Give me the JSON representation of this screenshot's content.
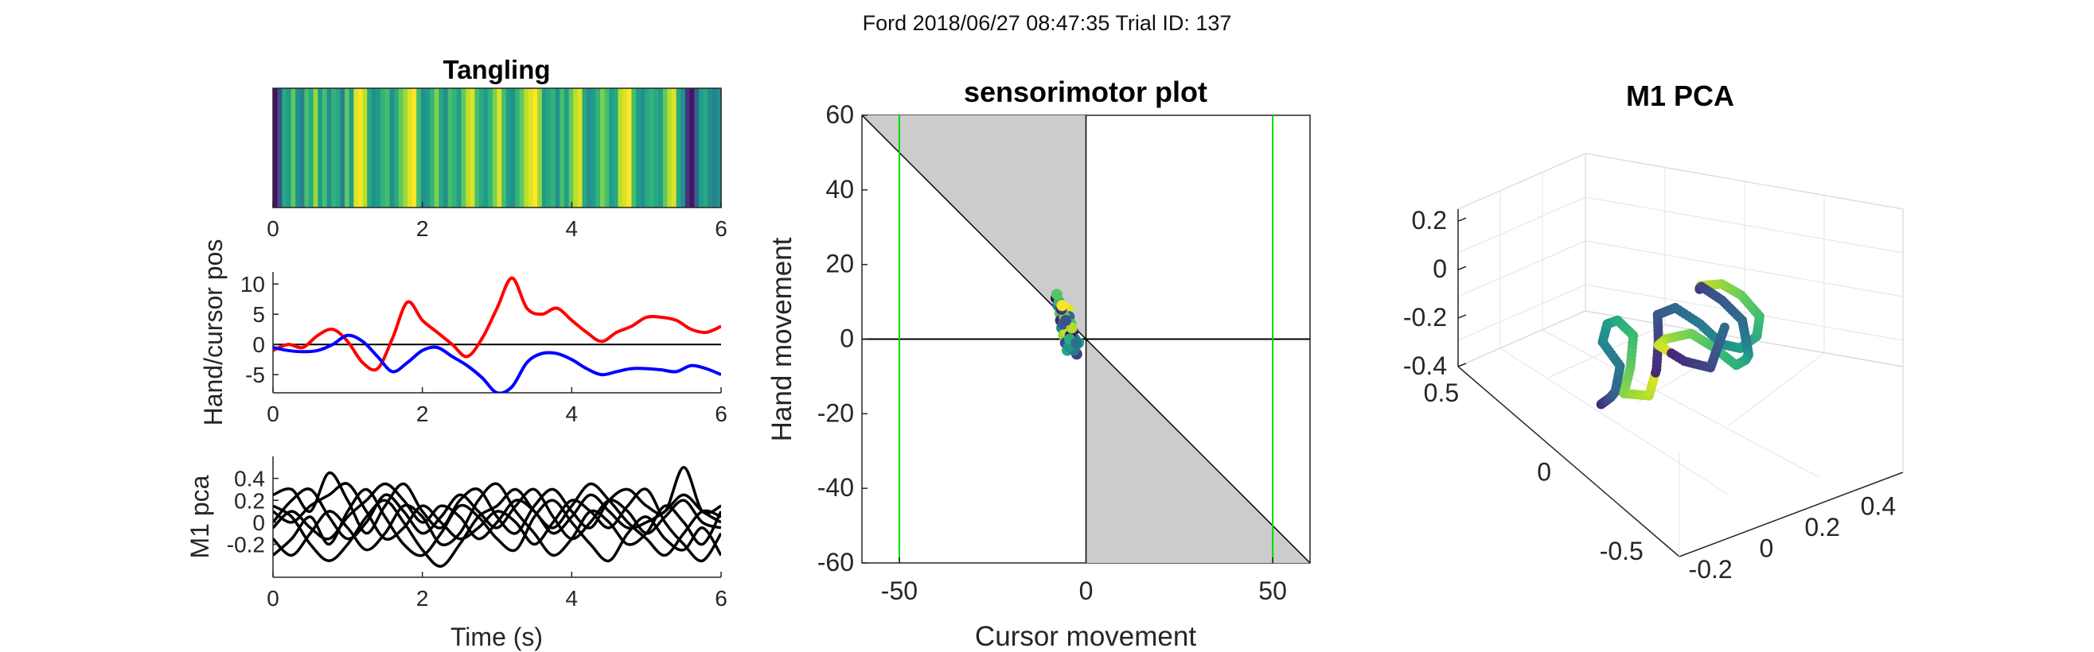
{
  "figure": {
    "title": "Ford 2018/06/27 08:47:35 Trial ID: 137"
  },
  "colors": {
    "hand": "#ff0000",
    "cursor": "#0000ff",
    "pca": "#000000",
    "shade": "#cccccc",
    "target_lines": "#00dd00",
    "colormap": "viridis"
  },
  "chart_data": [
    {
      "type": "heatmap",
      "title": "Tangling",
      "xlim": [
        0,
        6
      ],
      "xticks": [
        "0",
        "2",
        "4",
        "6"
      ],
      "colormap": "viridis",
      "values": [
        0.05,
        0.25,
        0.6,
        0.55,
        0.75,
        0.5,
        0.45,
        0.7,
        0.6,
        0.85,
        0.55,
        0.7,
        0.5,
        0.65,
        0.6,
        0.45,
        0.75,
        0.55,
        0.95,
        1.0,
        0.9,
        0.6,
        0.5,
        0.55,
        0.65,
        0.7,
        0.5,
        0.6,
        0.75,
        0.85,
        0.95,
        1.0,
        0.7,
        0.5,
        0.55,
        0.65,
        0.8,
        0.6,
        0.5,
        0.7,
        0.65,
        0.55,
        0.75,
        0.9,
        0.95,
        0.7,
        0.6,
        0.55,
        0.65,
        0.8,
        0.95,
        0.7,
        0.55,
        0.5,
        0.65,
        0.75,
        0.9,
        0.95,
        1.0,
        0.85,
        0.55,
        0.6,
        0.65,
        0.5,
        0.7,
        0.55,
        0.75,
        0.9,
        0.95,
        0.6,
        0.5,
        0.55,
        0.65,
        0.8,
        0.7,
        0.55,
        0.6,
        0.9,
        0.95,
        1.0,
        0.7,
        0.55,
        0.5,
        0.6,
        0.65,
        0.6,
        0.55,
        0.75,
        0.9,
        0.95,
        0.6,
        0.5,
        0.15,
        0.05,
        0.3,
        0.55,
        0.6,
        0.5,
        0.45,
        0.5
      ]
    },
    {
      "type": "line",
      "xlim": [
        0,
        6
      ],
      "ylim": [
        -8,
        12
      ],
      "xticks": [
        "0",
        "2",
        "4",
        "6"
      ],
      "yticks": [
        "-5",
        "0",
        "5",
        "10"
      ],
      "ylabel": "Hand/cursor pos",
      "x": [
        0,
        0.2,
        0.4,
        0.6,
        0.8,
        1.0,
        1.2,
        1.4,
        1.6,
        1.8,
        2.0,
        2.2,
        2.4,
        2.6,
        2.8,
        3.0,
        3.2,
        3.4,
        3.6,
        3.8,
        4.0,
        4.2,
        4.4,
        4.6,
        4.8,
        5.0,
        5.2,
        5.4,
        5.6,
        5.8,
        6.0
      ],
      "series": [
        {
          "color": "#ff0000",
          "values": [
            -1,
            0,
            -0.5,
            1.5,
            2.5,
            0.5,
            -3,
            -4,
            1,
            7,
            4,
            2,
            0,
            -2,
            1,
            6,
            11,
            6,
            5,
            6,
            4,
            2,
            0.5,
            2,
            3,
            4.5,
            4.5,
            4,
            2.5,
            2,
            3
          ]
        },
        {
          "color": "#0000ff",
          "values": [
            -0.5,
            -1,
            -1.2,
            -1,
            0,
            1.5,
            0.5,
            -2,
            -4.5,
            -3,
            -1,
            -0.5,
            -2,
            -3.5,
            -5.5,
            -8,
            -7,
            -3,
            -1.5,
            -1.5,
            -2.5,
            -4,
            -5,
            -4.5,
            -4,
            -4,
            -4.2,
            -4.5,
            -3.5,
            -4,
            -5
          ]
        }
      ]
    },
    {
      "type": "line",
      "xlim": [
        0,
        6
      ],
      "ylim": [
        -0.5,
        0.6
      ],
      "xticks": [
        "0",
        "2",
        "4",
        "6"
      ],
      "yticks": [
        "-0.2",
        "0",
        "0.2",
        "0.4"
      ],
      "xlabel": "Time (s)",
      "ylabel": "M1 pca",
      "x": [
        0,
        0.25,
        0.5,
        0.75,
        1.0,
        1.25,
        1.5,
        1.75,
        2.0,
        2.25,
        2.5,
        2.75,
        3.0,
        3.25,
        3.5,
        3.75,
        4.0,
        4.25,
        4.5,
        4.75,
        5.0,
        5.25,
        5.5,
        5.75,
        6.0
      ],
      "series": [
        {
          "color": "#000000",
          "values": [
            0.25,
            0.3,
            0.1,
            0.45,
            0.2,
            -0.1,
            0.15,
            0.35,
            0.1,
            -0.05,
            0.2,
            0.3,
            0.05,
            -0.1,
            0.15,
            0.3,
            0.1,
            -0.05,
            0.2,
            0.3,
            0.15,
            0.1,
            0.5,
            0.1,
            0.15
          ]
        },
        {
          "color": "#000000",
          "values": [
            -0.3,
            -0.15,
            0.05,
            -0.2,
            0.1,
            0.3,
            0.05,
            -0.2,
            -0.3,
            -0.1,
            0.15,
            0.05,
            -0.15,
            -0.25,
            0.05,
            0.2,
            0.0,
            -0.2,
            -0.35,
            -0.1,
            0.05,
            -0.15,
            -0.25,
            -0.05,
            -0.3
          ]
        },
        {
          "color": "#000000",
          "values": [
            0.0,
            0.2,
            0.3,
            0.05,
            -0.15,
            0.0,
            0.25,
            0.1,
            -0.1,
            0.05,
            0.25,
            0.1,
            -0.05,
            0.15,
            0.3,
            0.05,
            -0.15,
            0.0,
            0.2,
            0.1,
            -0.1,
            0.05,
            0.2,
            0.0,
            -0.05
          ]
        },
        {
          "color": "#000000",
          "values": [
            -0.15,
            -0.3,
            -0.1,
            0.1,
            -0.05,
            -0.25,
            -0.1,
            0.15,
            0.05,
            -0.2,
            -0.1,
            0.2,
            0.35,
            0.1,
            -0.1,
            -0.3,
            -0.15,
            0.1,
            0.0,
            -0.2,
            -0.1,
            0.15,
            0.0,
            -0.2,
            0.1
          ]
        },
        {
          "color": "#000000",
          "values": [
            0.15,
            0.05,
            -0.2,
            -0.35,
            -0.2,
            0.05,
            0.2,
            0.0,
            -0.25,
            -0.4,
            -0.2,
            0.05,
            0.15,
            0.3,
            0.1,
            -0.05,
            0.15,
            0.35,
            0.2,
            0.0,
            -0.15,
            -0.3,
            -0.1,
            0.1,
            0.05
          ]
        },
        {
          "color": "#000000",
          "values": [
            0.1,
            0.0,
            0.15,
            0.25,
            0.35,
            0.1,
            -0.15,
            -0.05,
            0.15,
            0.0,
            -0.15,
            -0.05,
            0.1,
            0.0,
            -0.2,
            0.0,
            0.2,
            0.1,
            -0.05,
            0.15,
            0.3,
            0.0,
            -0.2,
            -0.35,
            -0.1
          ]
        },
        {
          "color": "#000000",
          "values": [
            -0.05,
            0.1,
            -0.05,
            -0.15,
            0.05,
            0.2,
            0.35,
            0.2,
            0.0,
            0.15,
            0.05,
            -0.15,
            0.0,
            0.2,
            0.1,
            -0.1,
            0.05,
            0.25,
            0.1,
            -0.05,
            0.0,
            0.1,
            0.25,
            0.1,
            0.0
          ]
        }
      ]
    },
    {
      "type": "scatter",
      "title": "sensorimotor plot",
      "xlabel": "Cursor movement",
      "ylabel": "Hand movement",
      "xlim": [
        -60,
        60
      ],
      "ylim": [
        -60,
        60
      ],
      "xticks": [
        "-50",
        "0",
        "50"
      ],
      "yticks": [
        "-60",
        "-40",
        "-20",
        "0",
        "20",
        "40",
        "60"
      ],
      "target_lines_x": [
        -50,
        50
      ],
      "shaded_regions": "between y = -x and the y-axis",
      "points_x": [
        -8,
        -7.5,
        -7,
        -6.8,
        -6.5,
        -6,
        -5.5,
        -5,
        -4.8,
        -4.5,
        -4,
        -3.5,
        -3,
        -2.8,
        -2.5,
        -2,
        -5.2,
        -6.2,
        -7.2,
        -4.2,
        -3.2,
        -5.8,
        -6.6,
        -4.6,
        -3.8,
        -5.4,
        -4.4,
        -6.4,
        -2.6,
        -7.8
      ],
      "points_y": [
        11,
        9,
        7,
        5,
        3,
        1,
        -1,
        -3,
        8,
        6,
        4,
        2,
        0,
        -2,
        -4,
        -1,
        2,
        4,
        10,
        1,
        -3,
        6,
        8,
        -2,
        3,
        5,
        0,
        9,
        -1,
        12
      ],
      "colormap": "viridis"
    },
    {
      "type": "scatter",
      "title": "M1 PCA",
      "projection": "3d",
      "xticks": [
        "-0.2",
        "0",
        "0.2",
        "0.4"
      ],
      "yticks": [
        "-0.5",
        "0",
        "0.5"
      ],
      "zticks": [
        "-0.4",
        "-0.2",
        "0",
        "0.2"
      ],
      "xlim": [
        -0.3,
        0.5
      ],
      "ylim": [
        -0.6,
        0.6
      ],
      "zlim": [
        -0.4,
        0.25
      ],
      "colormap": "viridis",
      "points": [
        [
          -0.25,
          -0.1,
          -0.12
        ],
        [
          -0.2,
          -0.05,
          -0.16
        ],
        [
          -0.15,
          0.0,
          -0.2
        ],
        [
          -0.1,
          0.05,
          -0.23
        ],
        [
          -0.05,
          0.1,
          -0.18
        ],
        [
          -0.08,
          0.15,
          -0.1
        ],
        [
          -0.03,
          0.2,
          -0.08
        ],
        [
          0.02,
          0.22,
          -0.1
        ],
        [
          0.05,
          0.18,
          -0.15
        ],
        [
          0.0,
          0.12,
          -0.22
        ],
        [
          -0.05,
          0.08,
          -0.28
        ],
        [
          0.02,
          0.05,
          -0.3
        ],
        [
          0.08,
          0.1,
          -0.25
        ],
        [
          0.12,
          0.15,
          -0.18
        ],
        [
          0.15,
          0.2,
          -0.12
        ],
        [
          0.2,
          0.18,
          -0.1
        ],
        [
          0.25,
          0.12,
          -0.15
        ],
        [
          0.28,
          0.05,
          -0.2
        ],
        [
          0.3,
          -0.02,
          -0.18
        ],
        [
          0.32,
          -0.08,
          -0.1
        ],
        [
          0.35,
          -0.05,
          -0.05
        ],
        [
          0.33,
          0.02,
          0.0
        ],
        [
          0.3,
          0.08,
          0.02
        ],
        [
          0.27,
          0.15,
          -0.02
        ],
        [
          0.3,
          0.2,
          -0.08
        ],
        [
          0.34,
          0.25,
          -0.12
        ],
        [
          0.38,
          0.2,
          -0.16
        ],
        [
          0.4,
          0.12,
          -0.2
        ],
        [
          0.37,
          0.05,
          -0.24
        ],
        [
          0.33,
          -0.02,
          -0.22
        ],
        [
          0.28,
          -0.08,
          -0.18
        ],
        [
          0.22,
          -0.12,
          -0.15
        ],
        [
          0.18,
          -0.05,
          -0.1
        ],
        [
          0.15,
          0.02,
          -0.08
        ],
        [
          0.1,
          0.08,
          -0.12
        ],
        [
          0.12,
          0.15,
          -0.2
        ],
        [
          0.18,
          0.1,
          -0.26
        ],
        [
          0.24,
          0.05,
          -0.28
        ],
        [
          0.3,
          0.1,
          -0.25
        ],
        [
          0.36,
          0.15,
          -0.22
        ]
      ]
    }
  ]
}
